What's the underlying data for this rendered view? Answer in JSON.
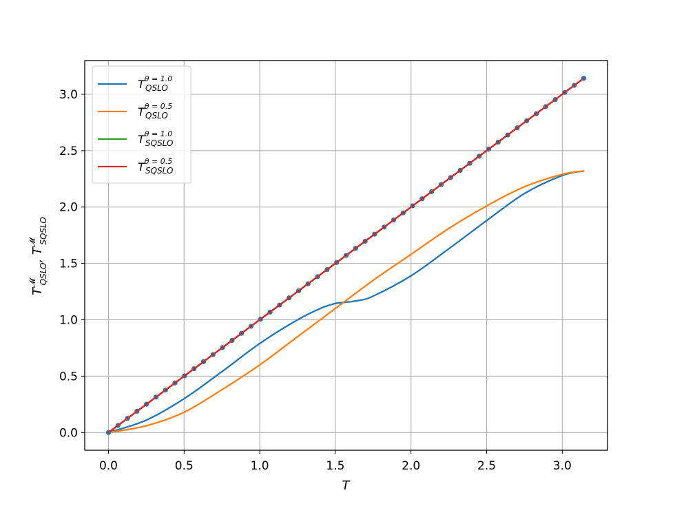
{
  "chart_data": {
    "type": "line",
    "xlabel": "T",
    "ylabel": "T^M_QSLO, T^M_SQSLO",
    "xlim": [
      -0.157,
      3.299
    ],
    "ylim": [
      -0.157,
      3.299
    ],
    "xticks": [
      "0.0",
      "0.5",
      "1.0",
      "1.5",
      "2.0",
      "2.5",
      "3.0"
    ],
    "xtick_values": [
      0.0,
      0.5,
      1.0,
      1.5,
      2.0,
      2.5,
      3.0
    ],
    "yticks": [
      "0.0",
      "0.5",
      "1.0",
      "1.5",
      "2.0",
      "2.5",
      "3.0"
    ],
    "ytick_values": [
      0.0,
      0.5,
      1.0,
      1.5,
      2.0,
      2.5,
      3.0
    ],
    "grid": true,
    "legend_position": "top-left",
    "series": [
      {
        "name": "T^{θ=1.0}_{QSLO}",
        "legend": {
          "base": "T",
          "sup": "θ = 1.0",
          "sub": "QSLO"
        },
        "color": "#1f77b4",
        "x": [
          0.0,
          0.25,
          0.5,
          0.75,
          1.0,
          1.25,
          1.4,
          1.5,
          1.571,
          1.65,
          1.75,
          2.0,
          2.25,
          2.5,
          2.75,
          3.0,
          3.142
        ],
        "y": [
          0.0,
          0.11,
          0.3,
          0.54,
          0.79,
          1.0,
          1.1,
          1.145,
          1.156,
          1.17,
          1.21,
          1.39,
          1.63,
          1.88,
          2.12,
          2.28,
          2.32
        ]
      },
      {
        "name": "T^{θ=0.5}_{QSLO}",
        "legend": {
          "base": "T",
          "sup": "θ = 0.5",
          "sub": "QSLO"
        },
        "color": "#ff7f0e",
        "x": [
          0.0,
          0.25,
          0.5,
          0.75,
          1.0,
          1.25,
          1.5,
          1.75,
          2.0,
          2.25,
          2.5,
          2.75,
          3.0,
          3.142
        ],
        "y": [
          0.0,
          0.06,
          0.18,
          0.38,
          0.6,
          0.85,
          1.1,
          1.35,
          1.58,
          1.81,
          2.01,
          2.18,
          2.29,
          2.32
        ]
      },
      {
        "name": "T^{θ=1.0}_{SQSLO}",
        "legend": {
          "base": "T",
          "sup": "θ = 1.0",
          "sub": "SQSLO"
        },
        "color": "#2ca02c",
        "x": [
          0.0,
          3.142
        ],
        "y": [
          0.0,
          3.142
        ]
      },
      {
        "name": "T^{θ=0.5}_{SQSLO}",
        "legend": {
          "base": "T",
          "sup": "θ = 0.5",
          "sub": "SQSLO"
        },
        "color": "#d62728",
        "x": [
          0.0,
          3.142
        ],
        "y": [
          0.0,
          3.142
        ]
      }
    ],
    "markers": {
      "color": "#1f77b4",
      "x_start": 0.0,
      "x_end": 3.142,
      "count": 51,
      "on": "y = x"
    }
  }
}
